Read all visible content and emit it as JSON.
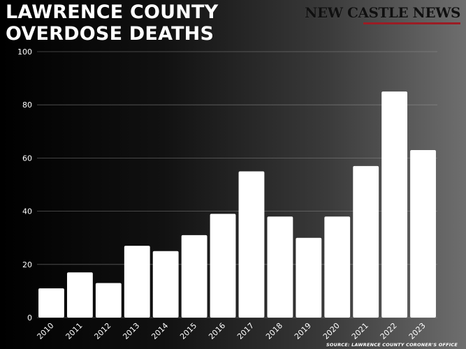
{
  "header": {
    "title_line1": "LAWRENCE COUNTY",
    "title_line2": "OVERDOSE DEATHS",
    "brand": "NEW CASTLE NEWS"
  },
  "footer": {
    "source": "SOURCE: LAWRENCE COUNTY CORONER'S OFFICE"
  },
  "colors": {
    "bar": "#ffffff",
    "grid": "#9a9a9a",
    "brand_rule": "#9b1c24"
  },
  "chart_data": {
    "type": "bar",
    "title": "LAWRENCE COUNTY OVERDOSE DEATHS",
    "xlabel": "",
    "ylabel": "",
    "categories": [
      "2010",
      "2011",
      "2012",
      "2013",
      "2014",
      "2015",
      "2016",
      "2017",
      "2018",
      "2019",
      "2020",
      "2021",
      "2022",
      "2023"
    ],
    "values": [
      11,
      17,
      13,
      27,
      25,
      31,
      39,
      55,
      38,
      30,
      38,
      57,
      85,
      63
    ],
    "ylim": [
      0,
      100
    ],
    "yticks": [
      0,
      20,
      40,
      60,
      80,
      100
    ],
    "grid": true,
    "legend": "none"
  }
}
